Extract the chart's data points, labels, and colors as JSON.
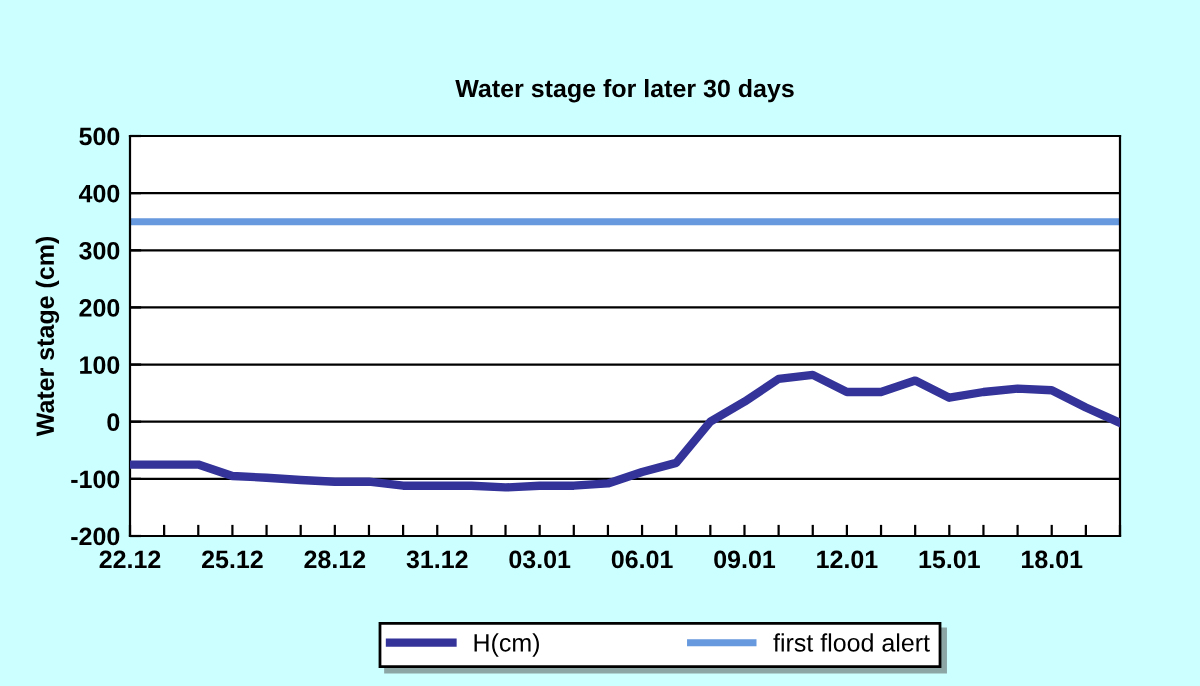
{
  "chart_data": {
    "type": "line",
    "title": "Water stage for later 30 days",
    "ylabel": "Water stage (cm)",
    "categories": [
      "22.12",
      null,
      null,
      "25.12",
      null,
      null,
      "28.12",
      null,
      null,
      "31.12",
      null,
      null,
      "03.01",
      null,
      null,
      "06.01",
      null,
      null,
      "09.01",
      null,
      null,
      "12.01",
      null,
      null,
      "15.01",
      null,
      null,
      "18.01",
      null,
      null
    ],
    "series": [
      {
        "name": "H(cm)",
        "color": "#333399",
        "values": [
          -75,
          -75,
          -75,
          -95,
          -98,
          -102,
          -105,
          -105,
          -112,
          -112,
          -112,
          -115,
          -112,
          -112,
          -108,
          -88,
          -72,
          0,
          35,
          75,
          82,
          52,
          52,
          72,
          42,
          52,
          58,
          55,
          25,
          -2
        ]
      }
    ],
    "ref_lines": [
      {
        "axis": "y",
        "value": 350,
        "label": "first flood alert",
        "color": "#6699dd"
      }
    ],
    "ylim": [
      -200,
      500
    ],
    "yticks": [
      -200,
      -100,
      0,
      100,
      200,
      300,
      400,
      500
    ],
    "grid": "y",
    "legend": "bottom"
  }
}
